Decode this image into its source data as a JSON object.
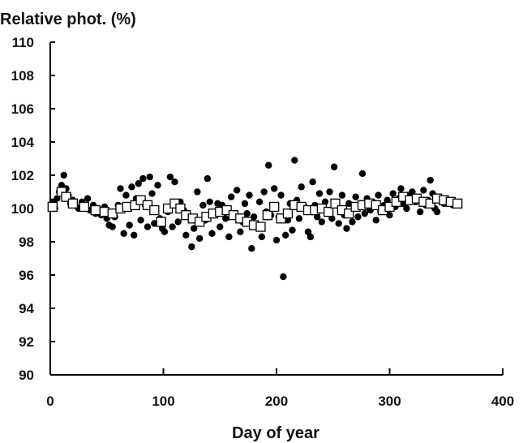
{
  "chart_data": {
    "type": "scatter",
    "title": "",
    "ylabel": "Relative phot. (%)",
    "xlabel": "Day of year",
    "xlim": [
      0,
      400
    ],
    "ylim": [
      90,
      110
    ],
    "x_ticks": [
      0,
      100,
      200,
      300,
      400
    ],
    "y_ticks": [
      90,
      92,
      94,
      96,
      98,
      100,
      102,
      104,
      106,
      108,
      110
    ],
    "grid": false,
    "legend": "none",
    "colors": {
      "daily": "#000000",
      "mean_fill": "#ffffff",
      "mean_edge": "#000000"
    },
    "series": [
      {
        "marker": "filled-circle",
        "x": [
          2,
          4,
          6,
          8,
          10,
          12,
          14,
          16,
          18,
          20,
          22,
          25,
          28,
          30,
          33,
          35,
          38,
          40,
          42,
          45,
          48,
          50,
          52,
          55,
          57,
          60,
          62,
          65,
          67,
          70,
          72,
          74,
          76,
          78,
          80,
          82,
          84,
          86,
          88,
          90,
          92,
          95,
          97,
          99,
          101,
          104,
          106,
          108,
          110,
          113,
          115,
          118,
          120,
          122,
          125,
          127,
          130,
          132,
          135,
          137,
          139,
          141,
          143,
          145,
          148,
          150,
          152,
          155,
          158,
          160,
          162,
          165,
          168,
          170,
          172,
          174,
          176,
          178,
          180,
          182,
          185,
          187,
          189,
          191,
          193,
          195,
          198,
          200,
          202,
          204,
          206,
          208,
          210,
          212,
          214,
          216,
          218,
          220,
          222,
          225,
          228,
          230,
          232,
          234,
          236,
          238,
          240,
          243,
          245,
          247,
          249,
          251,
          253,
          255,
          258,
          260,
          262,
          264,
          267,
          270,
          272,
          274,
          276,
          278,
          280,
          283,
          285,
          288,
          290,
          292,
          295,
          298,
          300,
          303,
          305,
          308,
          310,
          312,
          315,
          318,
          320,
          323,
          325,
          327,
          330,
          332,
          334,
          336,
          338,
          340,
          342,
          345,
          348,
          350,
          353,
          356,
          360
        ],
        "y": [
          100.4,
          100.0,
          100.6,
          101.0,
          101.4,
          102.0,
          101.2,
          100.8,
          100.3,
          100.5,
          100.2,
          100.0,
          100.4,
          100.1,
          100.6,
          99.9,
          100.2,
          99.7,
          100.0,
          99.6,
          100.1,
          99.4,
          99.0,
          98.9,
          99.5,
          100.2,
          101.2,
          98.5,
          100.8,
          99.0,
          101.3,
          98.4,
          100.6,
          101.5,
          99.3,
          101.8,
          100.2,
          98.9,
          101.9,
          100.9,
          99.1,
          101.4,
          99.4,
          98.8,
          98.6,
          99.8,
          101.9,
          98.9,
          101.6,
          99.2,
          100.4,
          99.9,
          98.4,
          99.6,
          97.7,
          98.8,
          101.0,
          98.2,
          100.2,
          99.3,
          101.8,
          100.4,
          98.5,
          99.8,
          100.3,
          98.9,
          100.2,
          99.4,
          98.3,
          100.7,
          99.6,
          101.1,
          98.6,
          99.2,
          100.3,
          99.7,
          100.8,
          97.6,
          99.5,
          99.1,
          100.4,
          98.3,
          101.0,
          99.8,
          102.6,
          99.6,
          101.2,
          98.1,
          99.5,
          100.8,
          95.9,
          98.4,
          99.3,
          100.3,
          98.7,
          102.9,
          100.5,
          99.4,
          101.3,
          100.1,
          98.6,
          98.3,
          101.6,
          100.2,
          99.5,
          100.9,
          99.2,
          100.4,
          99.7,
          101.0,
          99.4,
          102.5,
          100.2,
          99.1,
          100.8,
          99.6,
          98.8,
          100.3,
          99.2,
          100.7,
          99.5,
          100.3,
          102.1,
          99.7,
          100.6,
          99.9,
          100.4,
          99.3,
          100.8,
          99.8,
          100.2,
          100.5,
          99.6,
          100.9,
          100.1,
          100.6,
          101.2,
          100.3,
          100.0,
          100.8,
          101.0,
          100.4,
          100.6,
          99.8,
          101.1,
          100.2,
          100.5,
          101.7,
          100.9,
          100.0,
          99.8,
          100.6,
          100.3,
          100.5,
          100.4,
          100.2,
          100.3
        ]
      },
      {
        "marker": "open-square",
        "x": [
          2,
          10,
          14,
          20,
          30,
          40,
          48,
          55,
          62,
          68,
          75,
          80,
          86,
          92,
          98,
          104,
          110,
          115,
          120,
          126,
          132,
          138,
          144,
          150,
          156,
          162,
          168,
          174,
          180,
          186,
          192,
          198,
          204,
          210,
          216,
          222,
          228,
          234,
          240,
          246,
          252,
          258,
          264,
          270,
          276,
          282,
          288,
          294,
          300,
          306,
          312,
          318,
          324,
          330,
          336,
          342,
          348,
          354,
          360
        ],
        "y": [
          100.1,
          101.0,
          100.7,
          100.3,
          100.1,
          99.9,
          99.8,
          99.7,
          100.0,
          100.1,
          100.2,
          100.5,
          100.2,
          99.9,
          99.2,
          100.0,
          100.3,
          100.0,
          99.6,
          99.4,
          99.2,
          99.5,
          99.7,
          99.8,
          99.9,
          99.6,
          99.4,
          99.2,
          99.0,
          98.9,
          99.6,
          100.1,
          99.4,
          99.7,
          100.2,
          100.1,
          99.9,
          99.9,
          100.0,
          99.8,
          100.3,
          99.9,
          99.7,
          100.1,
          100.2,
          100.3,
          100.2,
          99.9,
          100.1,
          100.4,
          100.7,
          100.5,
          100.6,
          100.4,
          100.3,
          100.6,
          100.5,
          100.4,
          100.3
        ]
      }
    ]
  }
}
